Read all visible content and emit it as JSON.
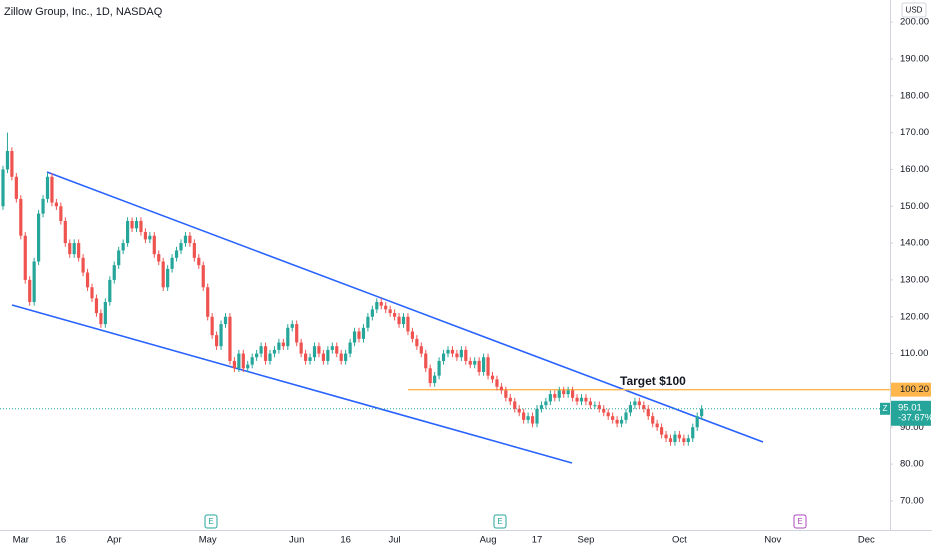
{
  "chart_data": {
    "type": "candlestick",
    "title": "Zillow Group, Inc., 1D, NASDAQ",
    "currency": "USD",
    "symbol": "Z",
    "up_color": "#26a69a",
    "down_color": "#ef5350",
    "ylim": [
      62.1,
      206.0
    ],
    "yticks": [
      {
        "value": 70,
        "label": "70.00"
      },
      {
        "value": 80,
        "label": "80.00"
      },
      {
        "value": 90,
        "label": "90.00"
      },
      {
        "value": 100,
        "label": "100.00"
      },
      {
        "value": 110,
        "label": "110.00"
      },
      {
        "value": 120,
        "label": "120.00"
      },
      {
        "value": 130,
        "label": "130.00"
      },
      {
        "value": 140,
        "label": "140.00"
      },
      {
        "value": 150,
        "label": "150.00"
      },
      {
        "value": 160,
        "label": "160.00"
      },
      {
        "value": 170,
        "label": "170.00"
      },
      {
        "value": 180,
        "label": "180.00"
      },
      {
        "value": 190,
        "label": "190.00"
      },
      {
        "value": 200,
        "label": "200.00"
      }
    ],
    "grid": false,
    "categories": [
      null,
      null,
      null,
      null,
      "Mar",
      null,
      null,
      null,
      null,
      null,
      null,
      null,
      null,
      "16",
      null,
      null,
      null,
      null,
      null,
      null,
      null,
      null,
      null,
      null,
      null,
      "Apr",
      null,
      null,
      null,
      null,
      null,
      null,
      null,
      null,
      null,
      null,
      null,
      null,
      null,
      null,
      null,
      null,
      null,
      null,
      null,
      null,
      "May",
      null,
      null,
      null,
      null,
      null,
      null,
      null,
      null,
      null,
      null,
      null,
      null,
      null,
      null,
      null,
      null,
      null,
      null,
      null,
      "Jun",
      null,
      null,
      null,
      null,
      null,
      null,
      null,
      null,
      null,
      null,
      "16",
      null,
      null,
      null,
      null,
      null,
      null,
      null,
      null,
      null,
      null,
      "Jul",
      null,
      null,
      null,
      null,
      null,
      null,
      null,
      null,
      null,
      null,
      null,
      null,
      null,
      null,
      null,
      null,
      null,
      null,
      null,
      null,
      "Aug",
      null,
      null,
      null,
      null,
      null,
      null,
      null,
      null,
      null,
      null,
      "17",
      null,
      null,
      null,
      null,
      null,
      null,
      null,
      null,
      null,
      null,
      "Sep",
      null,
      null,
      null,
      null,
      null,
      null,
      null,
      null,
      null,
      null,
      null,
      null,
      null,
      null,
      null,
      null,
      null,
      null,
      null,
      null,
      "Oct",
      null,
      null,
      null,
      null,
      null,
      null,
      null,
      null,
      null,
      null,
      null,
      null,
      null,
      null,
      null,
      null,
      null,
      null,
      null,
      null,
      "Nov",
      null,
      null,
      null,
      null,
      null,
      null,
      null,
      null,
      null,
      null,
      null,
      null,
      null,
      null,
      null,
      null,
      null,
      null,
      null,
      null,
      "Dec",
      null,
      null,
      null,
      null,
      null
    ],
    "open": [
      150,
      160,
      165,
      158,
      152,
      142,
      130,
      124,
      135,
      148,
      152,
      158,
      151,
      150,
      146,
      140,
      137,
      140,
      136,
      132,
      128,
      125,
      121,
      118,
      124,
      130,
      134,
      138,
      140,
      146,
      144,
      146,
      143,
      141,
      142,
      137,
      135,
      128,
      133,
      136,
      138,
      140,
      142,
      140,
      136,
      134,
      128,
      120,
      115,
      112,
      118,
      120,
      108,
      106,
      110,
      106,
      107,
      109,
      110,
      112,
      108,
      110,
      111,
      113,
      112,
      117,
      118,
      113,
      110,
      108,
      109,
      112,
      110,
      108,
      111,
      112,
      110,
      108,
      110,
      113,
      116,
      114,
      117,
      120,
      122,
      124,
      123,
      122,
      121,
      120,
      118,
      120,
      116,
      114,
      112,
      110,
      106,
      102,
      104,
      108,
      110,
      111,
      110,
      109,
      111,
      108,
      107,
      108,
      105,
      109,
      104,
      103,
      101,
      100,
      98,
      97,
      95,
      94,
      92,
      93,
      91,
      95,
      96,
      97,
      99,
      98,
      100,
      99,
      100,
      98,
      97,
      98,
      97,
      96,
      96,
      95,
      94,
      93,
      92,
      91,
      92,
      94,
      96,
      97,
      96,
      95,
      93,
      91,
      90,
      88,
      87,
      86,
      88,
      87,
      86,
      87,
      90,
      93,
      null,
      null,
      null,
      null,
      null,
      null,
      null,
      null,
      null,
      null,
      null,
      null,
      null,
      null,
      null,
      null,
      null,
      null,
      null,
      null,
      null,
      null,
      null,
      null,
      null,
      null,
      null,
      null,
      null,
      null,
      null,
      null,
      null,
      null,
      null,
      null,
      null,
      null,
      null,
      null,
      null,
      null
    ],
    "high": [
      161,
      170,
      166,
      159,
      153,
      143,
      131,
      136,
      149,
      153,
      159,
      159,
      152,
      151,
      147,
      141,
      141,
      141,
      137,
      133,
      129,
      126,
      122,
      125,
      131,
      135,
      139,
      141,
      147,
      147,
      147,
      147,
      144,
      143,
      143,
      138,
      136,
      134,
      137,
      139,
      141,
      143,
      143,
      141,
      137,
      135,
      129,
      121,
      116,
      119,
      121,
      121,
      109,
      111,
      111,
      108,
      110,
      111,
      113,
      113,
      111,
      112,
      114,
      114,
      118,
      119,
      119,
      114,
      111,
      110,
      113,
      113,
      111,
      112,
      113,
      113,
      111,
      111,
      114,
      117,
      117,
      118,
      121,
      123,
      125,
      125,
      124,
      123,
      122,
      121,
      121,
      121,
      117,
      115,
      113,
      111,
      107,
      105,
      109,
      111,
      112,
      112,
      111,
      112,
      112,
      109,
      109,
      109,
      110,
      110,
      105,
      104,
      102,
      101,
      99,
      98,
      96,
      95,
      94,
      94,
      96,
      97,
      98,
      100,
      100,
      101,
      101,
      101,
      101,
      99,
      99,
      99,
      98,
      97,
      97,
      96,
      95,
      94,
      93,
      93,
      95,
      97,
      98,
      98,
      97,
      96,
      94,
      92,
      91,
      89,
      88,
      89,
      89,
      88,
      88,
      91,
      94,
      96,
      null,
      null,
      null,
      null,
      null,
      null,
      null,
      null,
      null,
      null,
      null,
      null,
      null,
      null,
      null,
      null,
      null,
      null,
      null,
      null,
      null,
      null,
      null,
      null,
      null,
      null,
      null,
      null,
      null,
      null,
      null,
      null,
      null,
      null,
      null,
      null,
      null,
      null,
      null,
      null,
      null,
      null
    ],
    "low": [
      149,
      159,
      157,
      151,
      141,
      129,
      123,
      123,
      134,
      147,
      151,
      150,
      149,
      145,
      139,
      136,
      136,
      135,
      131,
      127,
      124,
      120,
      117,
      117,
      123,
      129,
      133,
      137,
      139,
      143,
      143,
      142,
      140,
      140,
      136,
      134,
      127,
      127,
      132,
      135,
      137,
      139,
      139,
      135,
      133,
      127,
      119,
      114,
      111,
      111,
      117,
      107,
      105,
      105,
      105,
      105,
      106,
      108,
      109,
      107,
      107,
      109,
      110,
      111,
      111,
      116,
      112,
      109,
      107,
      107,
      108,
      109,
      107,
      107,
      110,
      109,
      107,
      107,
      109,
      112,
      113,
      113,
      116,
      119,
      121,
      122,
      121,
      120,
      119,
      117,
      117,
      115,
      113,
      111,
      109,
      105,
      101,
      101,
      103,
      107,
      109,
      109,
      108,
      108,
      107,
      106,
      106,
      104,
      104,
      103,
      102,
      100,
      99,
      97,
      96,
      94,
      93,
      91,
      91,
      90,
      90,
      94,
      95,
      96,
      97,
      97,
      98,
      98,
      97,
      96,
      96,
      96,
      95,
      95,
      94,
      93,
      92,
      91,
      90,
      90,
      91,
      93,
      95,
      95,
      94,
      92,
      90,
      89,
      87,
      86,
      85,
      85,
      86,
      85,
      85,
      86,
      89,
      92,
      null,
      null,
      null,
      null,
      null,
      null,
      null,
      null,
      null,
      null,
      null,
      null,
      null,
      null,
      null,
      null,
      null,
      null,
      null,
      null,
      null,
      null,
      null,
      null,
      null,
      null,
      null,
      null,
      null,
      null,
      null,
      null,
      null,
      null,
      null,
      null,
      null,
      null,
      null,
      null,
      null,
      null
    ],
    "close": [
      160,
      165,
      158,
      152,
      142,
      130,
      124,
      135,
      148,
      152,
      158,
      151,
      150,
      146,
      140,
      137,
      140,
      136,
      132,
      128,
      125,
      121,
      118,
      124,
      130,
      134,
      138,
      140,
      146,
      144,
      146,
      143,
      141,
      142,
      137,
      135,
      128,
      133,
      136,
      138,
      140,
      142,
      140,
      136,
      134,
      128,
      120,
      115,
      112,
      118,
      120,
      108,
      106,
      110,
      106,
      107,
      109,
      110,
      112,
      108,
      110,
      111,
      113,
      112,
      117,
      118,
      113,
      110,
      108,
      109,
      112,
      110,
      108,
      111,
      112,
      110,
      108,
      110,
      113,
      116,
      114,
      117,
      120,
      122,
      124,
      123,
      122,
      121,
      120,
      118,
      120,
      116,
      114,
      112,
      110,
      106,
      102,
      104,
      108,
      110,
      111,
      110,
      109,
      111,
      108,
      107,
      108,
      105,
      109,
      104,
      103,
      101,
      100,
      98,
      97,
      95,
      94,
      92,
      93,
      91,
      95,
      96,
      97,
      99,
      98,
      100,
      99,
      100,
      98,
      97,
      98,
      97,
      96,
      96,
      95,
      94,
      93,
      92,
      91,
      92,
      94,
      96,
      97,
      96,
      95,
      93,
      91,
      90,
      88,
      87,
      86,
      88,
      87,
      86,
      87,
      90,
      93,
      95.01,
      null,
      null,
      null,
      null,
      null,
      null,
      null,
      null,
      null,
      null,
      null,
      null,
      null,
      null,
      null,
      null,
      null,
      null,
      null,
      null,
      null,
      null,
      null,
      null,
      null,
      null,
      null,
      null,
      null,
      null,
      null,
      null,
      null,
      null,
      null,
      null,
      null,
      null,
      null,
      null,
      null,
      null
    ],
    "horizontal_line": {
      "value": 100.2,
      "label": "100.20",
      "color": "#ffb74d"
    },
    "annotation": "Target $100",
    "last_price": 95.01,
    "change_label": "-37.67%",
    "earnings_markers": [
      "E",
      "E",
      "E"
    ]
  }
}
